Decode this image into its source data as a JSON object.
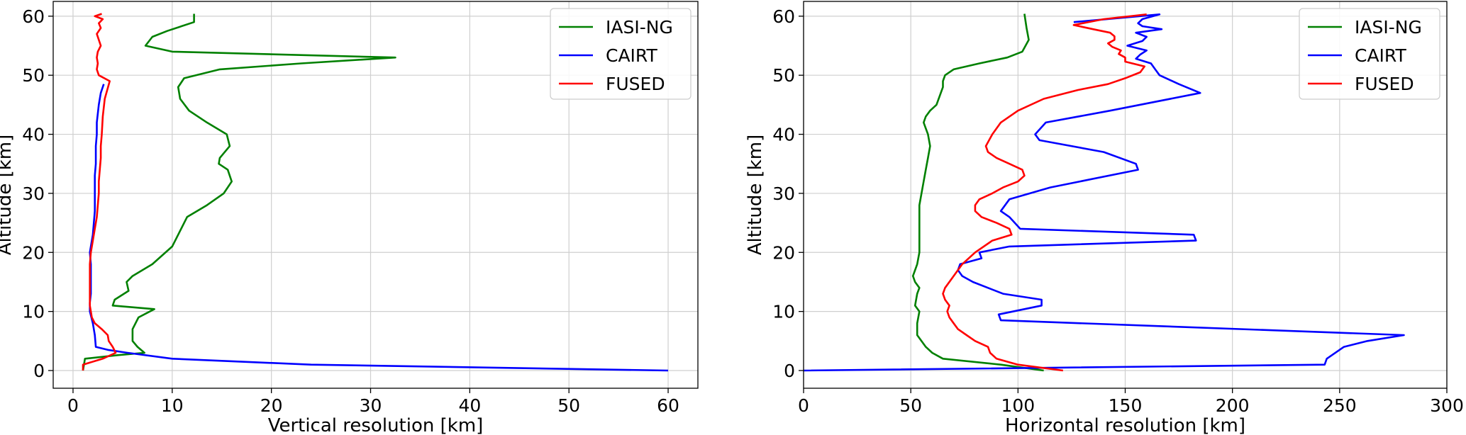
{
  "chart_data": [
    {
      "type": "line",
      "title": "",
      "xlabel": "Vertical resolution [km]",
      "ylabel": "Altitude [km]",
      "xlim": [
        -2,
        63
      ],
      "ylim": [
        -3,
        62.5
      ],
      "xticks": [
        0,
        10,
        20,
        30,
        40,
        50,
        60
      ],
      "yticks": [
        0,
        10,
        20,
        30,
        40,
        50,
        60
      ],
      "grid": true,
      "legend": "top-right",
      "series": [
        {
          "name": "IASI-NG",
          "color": "#008000",
          "x": [
            1.0,
            1.2,
            4.5,
            7.2,
            6.5,
            6.0,
            6.0,
            6.6,
            8.2,
            4.0,
            4.2,
            5.6,
            5.4,
            6.0,
            8.0,
            9.0,
            10.0,
            10.6,
            11.5,
            13.5,
            15.2,
            16.0,
            15.6,
            14.7,
            14.8,
            15.8,
            15.5,
            13.5,
            11.7,
            10.8,
            10.6,
            11.2,
            14.8,
            23.0,
            32.5,
            10.0,
            7.3,
            8.0,
            9.5,
            12.2,
            12.2
          ],
          "y": [
            0,
            2,
            2.6,
            3,
            4,
            5,
            7,
            9,
            10.4,
            11,
            12,
            13.5,
            15,
            16,
            18,
            19.5,
            21,
            23,
            26,
            28,
            30,
            32,
            34,
            35,
            36,
            38,
            40,
            42,
            44,
            46,
            48,
            49.5,
            51,
            52,
            53,
            54,
            55,
            56.5,
            57.5,
            59,
            60.4
          ]
        },
        {
          "name": "CAIRT",
          "color": "#0000ff",
          "x": [
            60.0,
            24.0,
            10.0,
            5.5,
            3.5,
            2.3,
            2.2,
            2.0,
            1.7,
            1.7,
            1.8,
            1.8,
            1.8,
            1.7,
            1.8,
            2.0,
            2.1,
            2.2,
            2.2,
            2.2,
            2.3,
            2.3,
            2.4,
            2.4,
            2.6,
            2.8,
            3.1
          ],
          "y": [
            0,
            1,
            2,
            3,
            3.5,
            4,
            6,
            8,
            10,
            11.5,
            13,
            16,
            18,
            20,
            21,
            23,
            25,
            27,
            30,
            33,
            35,
            38,
            40,
            42,
            45,
            47,
            48.5
          ]
        },
        {
          "name": "FUSED",
          "color": "#ff0000",
          "x": [
            1.0,
            1.0,
            3.0,
            4.3,
            4.0,
            3.6,
            3.5,
            2.9,
            2.2,
            1.9,
            1.7,
            1.7,
            1.7,
            1.7,
            1.8,
            2.0,
            2.2,
            2.4,
            2.5,
            2.6,
            2.6,
            2.7,
            2.8,
            2.8,
            2.9,
            3.0,
            3.2,
            3.7,
            2.6,
            2.4,
            2.5,
            2.4,
            2.5,
            2.8,
            2.6,
            2.4,
            2.8,
            2.6,
            3.0,
            2.2,
            2.9
          ],
          "y": [
            0,
            1,
            2,
            3,
            4,
            5,
            6,
            7,
            8,
            9,
            11,
            13,
            16,
            18,
            20,
            22,
            24,
            26,
            28,
            30,
            32,
            34,
            36,
            38,
            40,
            43,
            46,
            49,
            50,
            51,
            52,
            53,
            54,
            55,
            56,
            57,
            58,
            58.8,
            59.5,
            60,
            60.4
          ]
        }
      ]
    },
    {
      "type": "line",
      "title": "",
      "xlabel": "Horizontal resolution [km]",
      "ylabel": "Altitude [km]",
      "xlim": [
        0,
        300
      ],
      "ylim": [
        -3,
        62.5
      ],
      "xticks": [
        0,
        50,
        100,
        150,
        200,
        250,
        300
      ],
      "yticks": [
        0,
        10,
        20,
        30,
        40,
        50,
        60
      ],
      "grid": true,
      "legend": "top-right",
      "series": [
        {
          "name": "IASI-NG",
          "color": "#008000",
          "x": [
            112,
            92,
            65,
            60,
            57,
            53,
            53,
            54,
            52,
            53,
            54,
            52,
            51,
            52,
            53,
            54,
            54,
            54,
            54,
            54,
            55,
            56,
            57,
            58,
            59,
            58,
            57,
            56,
            57,
            59,
            62,
            64,
            65,
            65,
            66,
            70,
            82,
            95,
            102,
            105,
            104,
            103
          ],
          "y": [
            0,
            1,
            2,
            3,
            4,
            6,
            8,
            10,
            11,
            13,
            14,
            15,
            16,
            17,
            18,
            20,
            22,
            24,
            26,
            28,
            30,
            32,
            34,
            36,
            38,
            40,
            41,
            42,
            43,
            44,
            45,
            47,
            48,
            49,
            50,
            51,
            52,
            53,
            54,
            56,
            58,
            60.4
          ]
        },
        {
          "name": "CAIRT",
          "color": "#0000ff",
          "x": [
            0,
            243,
            244,
            252,
            263,
            280,
            92,
            91,
            111,
            111,
            93,
            79,
            74,
            72,
            73,
            83,
            82,
            96,
            183,
            182,
            101,
            96,
            92,
            96,
            115,
            156,
            155,
            140,
            110,
            108,
            113,
            143,
            185,
            175,
            166,
            164,
            162,
            155,
            157,
            160,
            151,
            158,
            160,
            155,
            167,
            158,
            156,
            158,
            166,
            126
          ],
          "y": [
            0,
            1,
            2,
            4,
            5,
            6,
            8.5,
            9.5,
            11,
            12,
            13,
            15,
            16,
            17,
            18,
            19,
            20,
            21,
            22,
            23,
            24,
            26,
            27,
            29,
            31,
            34,
            35,
            37,
            39,
            40,
            42,
            44,
            47,
            48.5,
            50,
            51,
            52,
            52.8,
            53.5,
            54.2,
            55,
            55.8,
            56.5,
            57.2,
            57.8,
            58.3,
            58.8,
            59.5,
            60.3,
            59
          ]
        },
        {
          "name": "FUSED",
          "color": "#ff0000",
          "x": [
            121,
            100,
            90,
            87,
            86,
            80,
            76,
            72,
            70,
            68,
            67,
            68,
            66,
            65,
            66,
            70,
            74,
            80,
            88,
            97,
            96,
            90,
            83,
            80,
            80,
            82,
            88,
            93,
            100,
            103,
            102,
            96,
            90,
            86,
            85,
            88,
            92,
            100,
            112,
            128,
            142,
            150,
            157,
            159,
            150,
            150,
            147,
            148,
            144,
            142,
            145,
            145,
            143,
            135,
            126,
            140,
            160
          ],
          "y": [
            0,
            1,
            2,
            3,
            4,
            5,
            6,
            7,
            8,
            9,
            10,
            11,
            12,
            13,
            14,
            16,
            18,
            20,
            22,
            23,
            24,
            25,
            26,
            27,
            28,
            29,
            30,
            31,
            32,
            33,
            34,
            35,
            36,
            37,
            38,
            40,
            42,
            44,
            46,
            47.5,
            48.5,
            49.5,
            50.5,
            51.5,
            52.3,
            53,
            53.6,
            54.2,
            54.8,
            55.4,
            56,
            56.6,
            57.2,
            57.8,
            58.5,
            59.5,
            60.3
          ]
        }
      ]
    }
  ]
}
